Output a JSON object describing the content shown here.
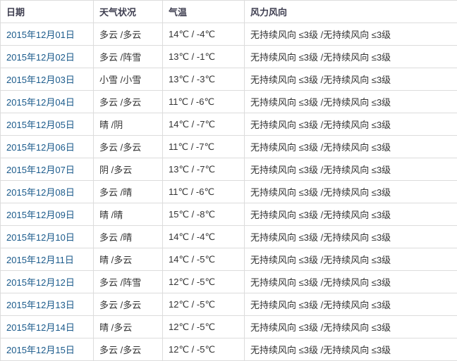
{
  "table": {
    "columns": [
      {
        "key": "date",
        "label": "日期"
      },
      {
        "key": "weather",
        "label": "天气状况"
      },
      {
        "key": "temp",
        "label": "气温"
      },
      {
        "key": "wind",
        "label": "风力风向"
      }
    ],
    "rows": [
      {
        "date": "2015年12月01日",
        "weather": "多云 /多云",
        "temp": "14℃ / -4℃",
        "wind": "无持续风向 ≤3级 /无持续风向 ≤3级"
      },
      {
        "date": "2015年12月02日",
        "weather": "多云 /阵雪",
        "temp": "13℃ / -1℃",
        "wind": "无持续风向 ≤3级 /无持续风向 ≤3级"
      },
      {
        "date": "2015年12月03日",
        "weather": "小雪 /小雪",
        "temp": "13℃ / -3℃",
        "wind": "无持续风向 ≤3级 /无持续风向 ≤3级"
      },
      {
        "date": "2015年12月04日",
        "weather": "多云 /多云",
        "temp": "11℃ / -6℃",
        "wind": "无持续风向 ≤3级 /无持续风向 ≤3级"
      },
      {
        "date": "2015年12月05日",
        "weather": "晴 /阴",
        "temp": "14℃ / -7℃",
        "wind": "无持续风向 ≤3级 /无持续风向 ≤3级"
      },
      {
        "date": "2015年12月06日",
        "weather": "多云 /多云",
        "temp": "11℃ / -7℃",
        "wind": "无持续风向 ≤3级 /无持续风向 ≤3级"
      },
      {
        "date": "2015年12月07日",
        "weather": "阴 /多云",
        "temp": "13℃ / -7℃",
        "wind": "无持续风向 ≤3级 /无持续风向 ≤3级"
      },
      {
        "date": "2015年12月08日",
        "weather": "多云 /晴",
        "temp": "11℃ / -6℃",
        "wind": "无持续风向 ≤3级 /无持续风向 ≤3级"
      },
      {
        "date": "2015年12月09日",
        "weather": "晴 /晴",
        "temp": "15℃ / -8℃",
        "wind": "无持续风向 ≤3级 /无持续风向 ≤3级"
      },
      {
        "date": "2015年12月10日",
        "weather": "多云 /晴",
        "temp": "14℃ / -4℃",
        "wind": "无持续风向 ≤3级 /无持续风向 ≤3级"
      },
      {
        "date": "2015年12月11日",
        "weather": "晴 /多云",
        "temp": "14℃ / -5℃",
        "wind": "无持续风向 ≤3级 /无持续风向 ≤3级"
      },
      {
        "date": "2015年12月12日",
        "weather": "多云 /阵雪",
        "temp": "12℃ / -5℃",
        "wind": "无持续风向 ≤3级 /无持续风向 ≤3级"
      },
      {
        "date": "2015年12月13日",
        "weather": "多云 /多云",
        "temp": "12℃ / -5℃",
        "wind": "无持续风向 ≤3级 /无持续风向 ≤3级"
      },
      {
        "date": "2015年12月14日",
        "weather": "晴 /多云",
        "temp": "12℃ / -5℃",
        "wind": "无持续风向 ≤3级 /无持续风向 ≤3级"
      },
      {
        "date": "2015年12月15日",
        "weather": "多云 /多云",
        "temp": "12℃ / -5℃",
        "wind": "无持续风向 ≤3级 /无持续风向 ≤3级"
      }
    ]
  },
  "colors": {
    "link": "#1a5a8b",
    "border": "#dcdcdc",
    "header_text": "#3e3e50",
    "body_text": "#333333",
    "row_background": "#ffffff"
  }
}
